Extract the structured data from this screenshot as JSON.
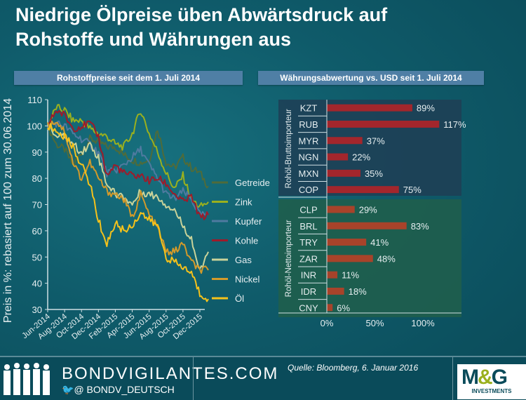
{
  "title_line1": "Niedrige Ölpreise üben Abwärtsdruck auf",
  "title_line2": "Rohstoffe und Währungen aus",
  "chart_data": [
    {
      "type": "line",
      "title": "Rohstoffpreise seit dem 1. Juli 2014",
      "ylabel": "Preis in %: rebasiert auf 100 zum  30.06.2014",
      "ylim": [
        30,
        110
      ],
      "yticks": [
        30,
        40,
        50,
        60,
        70,
        80,
        90,
        100,
        110
      ],
      "xticks": [
        "Jun-2014",
        "Aug-2014",
        "Oct-2014",
        "Dec-2014",
        "Feb-2015",
        "Apr-2015",
        "Jun-2015",
        "Aug-2015",
        "Oct-2015",
        "Dec-2015"
      ],
      "x": [
        "2014-06",
        "2014-07",
        "2014-08",
        "2014-09",
        "2014-10",
        "2014-11",
        "2014-12",
        "2015-01",
        "2015-02",
        "2015-03",
        "2015-04",
        "2015-05",
        "2015-06",
        "2015-07",
        "2015-08",
        "2015-09",
        "2015-10",
        "2015-11",
        "2015-12",
        "2016-01"
      ],
      "legend": "right",
      "series": [
        {
          "name": "Getreide",
          "color": "#4f6b3a",
          "values": [
            100,
            93,
            91,
            85,
            90,
            95,
            94,
            92,
            92,
            89,
            87,
            86,
            87,
            99,
            86,
            84,
            88,
            84,
            82,
            77
          ]
        },
        {
          "name": "Zink",
          "color": "#9ab01e",
          "values": [
            100,
            107,
            106,
            102,
            102,
            99,
            97,
            96,
            93,
            92,
            97,
            106,
            97,
            90,
            82,
            76,
            81,
            72,
            69,
            71
          ]
        },
        {
          "name": "Kupfer",
          "color": "#4f7aa0",
          "values": [
            100,
            101,
            100,
            97,
            95,
            93,
            90,
            82,
            83,
            85,
            88,
            91,
            85,
            80,
            74,
            72,
            75,
            72,
            66,
            66
          ]
        },
        {
          "name": "Kohle",
          "color": "#9e1b2a",
          "values": [
            100,
            106,
            104,
            99,
            100,
            101,
            96,
            81,
            85,
            82,
            81,
            81,
            79,
            80,
            78,
            74,
            71,
            73,
            65,
            66
          ]
        },
        {
          "name": "Gas",
          "color": "#c9d39a",
          "values": [
            100,
            96,
            96,
            93,
            90,
            93,
            88,
            78,
            74,
            73,
            70,
            75,
            74,
            73,
            70,
            68,
            62,
            57,
            44,
            52
          ]
        },
        {
          "name": "Nickel",
          "color": "#d39a2a",
          "values": [
            100,
            102,
            98,
            86,
            80,
            86,
            80,
            75,
            74,
            72,
            65,
            74,
            66,
            61,
            52,
            52,
            55,
            48,
            45,
            45
          ]
        },
        {
          "name": "Öl",
          "color": "#f5c21b",
          "values": [
            100,
            98,
            96,
            92,
            85,
            78,
            64,
            55,
            63,
            60,
            62,
            67,
            64,
            62,
            50,
            48,
            46,
            44,
            36,
            34
          ]
        }
      ]
    },
    {
      "type": "bar",
      "orientation": "horizontal",
      "title": "Währungsabwertung  vs. USD seit 1. Juli 2014",
      "xticks": [
        "0%",
        "50%",
        "100%"
      ],
      "xlim": [
        0,
        140
      ],
      "groups": [
        {
          "name": "Rohöl-Bruttoimporteur",
          "categories": [
            "KZT",
            "RUB",
            "MYR",
            "NGN",
            "MXN",
            "COP"
          ],
          "values": [
            89,
            117,
            37,
            22,
            35,
            75
          ],
          "labels": [
            "89%",
            "117%",
            "37%",
            "22%",
            "35%",
            "75%"
          ]
        },
        {
          "name": "Rohöl-Nettoimporteur",
          "categories": [
            "CLP",
            "BRL",
            "TRY",
            "ZAR",
            "INR",
            "IDR",
            "CNY"
          ],
          "values": [
            29,
            83,
            41,
            48,
            11,
            18,
            6
          ],
          "labels": [
            "29%",
            "83%",
            "41%",
            "48%",
            "11%",
            "18%",
            "6%"
          ]
        }
      ],
      "bar_colors": [
        "#a3262c",
        "#a8432a"
      ]
    }
  ],
  "footer": {
    "brand": "BONDVIGILANTES.COM",
    "twitter": "@ BONDV_DEUTSCH",
    "source": "Quelle: Bloomberg, 6. Januar 2016",
    "logo": "M&G INVESTMENTS"
  }
}
